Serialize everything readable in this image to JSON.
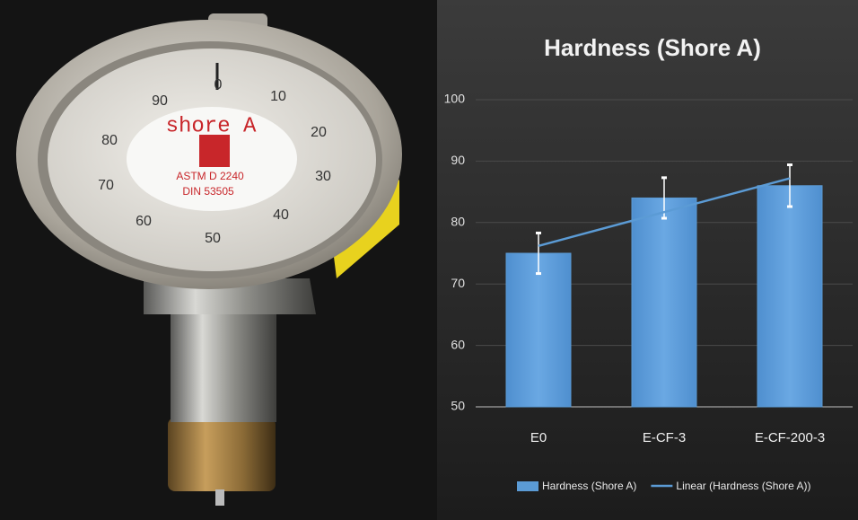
{
  "chart_data": {
    "type": "bar",
    "title": "Hardness (Shore A)",
    "categories": [
      "E0",
      "E-CF-3",
      "E-CF-200-3"
    ],
    "series": [
      {
        "name": "Hardness (Shore A)",
        "color": "#5b9bd5",
        "values": [
          75,
          84,
          86
        ],
        "errors": [
          3.3,
          3.3,
          3.4
        ]
      },
      {
        "name": "Linear (Hardness (Shore A))",
        "type": "line",
        "color": "#5b9bd5",
        "values": [
          76.2,
          81.7,
          87.2
        ]
      }
    ],
    "ylim": [
      50,
      100
    ],
    "yticks": [
      50,
      60,
      70,
      80,
      90,
      100
    ],
    "grid": true,
    "legend": "bottom"
  },
  "photo": {
    "dial_numbers": [
      0,
      10,
      20,
      30,
      40,
      50,
      60,
      70,
      80,
      90
    ],
    "brand": "shore A",
    "standard_1": "ASTM   D 2240",
    "standard_2": "DIN  53505"
  }
}
